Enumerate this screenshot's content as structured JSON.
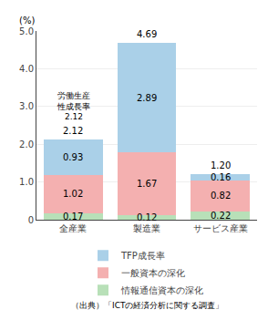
{
  "chart_data": {
    "type": "bar",
    "stacked": true,
    "data_labels": true,
    "grid": true,
    "legend": "bottom",
    "ylabel": "(%)",
    "categories": [
      "全産業",
      "製造業",
      "サービス産業"
    ],
    "series": [
      {
        "name": "情報通信資本の深化",
        "color": "#b8e0b8",
        "values": [
          0.17,
          0.12,
          0.22
        ]
      },
      {
        "name": "一般資本の深化",
        "color": "#f4b0b0",
        "values": [
          1.02,
          1.67,
          0.82
        ]
      },
      {
        "name": "TFP成長率",
        "color": "#aad0e8",
        "values": [
          0.93,
          2.89,
          0.16
        ]
      }
    ],
    "totals": [
      2.12,
      4.69,
      1.2
    ],
    "total_labels": [
      "2.12",
      "4.69",
      "1.20"
    ],
    "annotation": [
      "労働生産",
      "性成長率",
      "2.12"
    ],
    "source_text": "（出典）「ICTの経済分析に関する調査」",
    "ylim": [
      0,
      5.0
    ],
    "yticks": [
      0,
      {
        "value": 1.0,
        "label": "1.0"
      },
      {
        "value": 2.0,
        "label": "2.0"
      },
      {
        "value": 3.0,
        "label": "3.0"
      },
      {
        "value": 4.0,
        "label": "4.0"
      },
      {
        "value": 5.0,
        "label": "5.0"
      }
    ]
  }
}
